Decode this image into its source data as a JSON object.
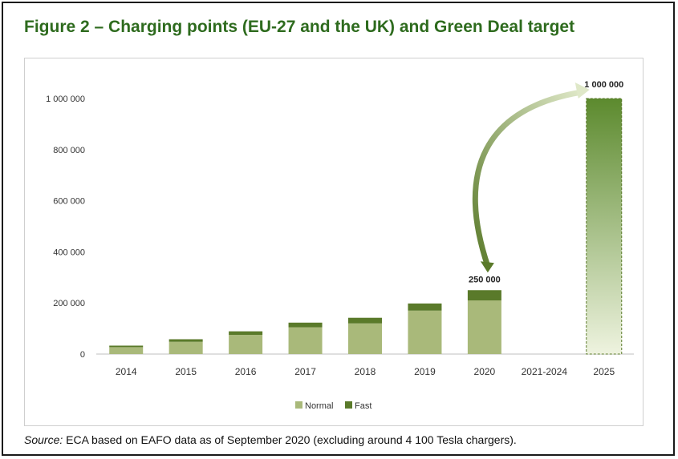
{
  "title": "Figure 2 – Charging points (EU-27 and the UK) and Green Deal target",
  "source": {
    "label": "Source:",
    "text": "ECA based on EAFO data as of September 2020 (excluding around 4 100 Tesla chargers)."
  },
  "colors": {
    "normal": "#a9b97a",
    "fast": "#5a7a2a",
    "title": "#2e6b1e",
    "target_top": "#5c8a2e",
    "target_bottom": "#eef3df"
  },
  "chart_data": {
    "type": "bar",
    "stacked": true,
    "title": "Figure 2 – Charging points (EU-27 and the UK) and Green Deal target",
    "xlabel": "",
    "ylabel": "",
    "ylim": [
      0,
      1000000
    ],
    "yticks": [
      0,
      200000,
      400000,
      600000,
      800000,
      1000000
    ],
    "ytick_labels": [
      "0",
      "200 000",
      "400 000",
      "600 000",
      "800 000",
      "1 000 000"
    ],
    "categories": [
      "2014",
      "2015",
      "2016",
      "2017",
      "2018",
      "2019",
      "2020",
      "2021-2024",
      "2025"
    ],
    "series": [
      {
        "name": "Normal",
        "values": [
          27000,
          48000,
          75000,
          105000,
          120000,
          170000,
          210000,
          0,
          0
        ]
      },
      {
        "name": "Fast",
        "values": [
          6000,
          10000,
          14000,
          18000,
          22000,
          28000,
          40000,
          0,
          0
        ]
      }
    ],
    "target": {
      "category": "2025",
      "value": 1000000,
      "label": "1 000 000"
    },
    "annotations": [
      {
        "category": "2020",
        "label": "250 000"
      }
    ],
    "legend": {
      "position": "bottom",
      "entries": [
        "Normal",
        "Fast"
      ]
    }
  }
}
